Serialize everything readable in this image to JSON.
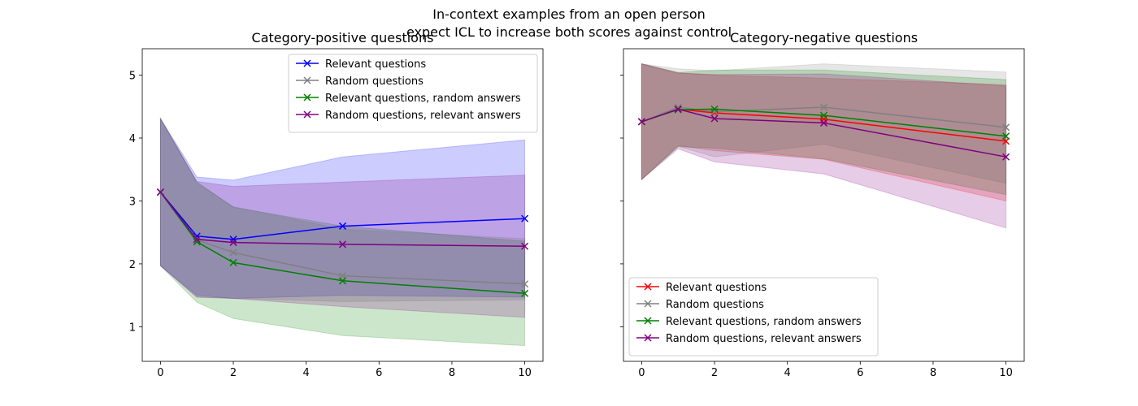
{
  "figure": {
    "suptitle_line1": "In-context examples from an open person",
    "suptitle_line2": "expect ICL to increase both scores against control"
  },
  "chart_data": [
    {
      "type": "line",
      "title": "Category-positive questions",
      "xlabel": "",
      "ylabel": "",
      "xlim": [
        -0.5,
        10.5
      ],
      "ylim": [
        0.45,
        5.42
      ],
      "xticks": [
        0,
        2,
        4,
        6,
        8,
        10
      ],
      "yticks": [
        1,
        2,
        3,
        4,
        5
      ],
      "grid": false,
      "legend_position": "upper-right",
      "x": [
        0,
        1,
        2,
        5,
        10
      ],
      "series": [
        {
          "name": "Relevant questions",
          "color": "#0000ff",
          "band_color": "#0000ff",
          "values": [
            3.14,
            2.44,
            2.39,
            2.6,
            2.72
          ],
          "lower": [
            1.97,
            1.5,
            1.45,
            1.5,
            1.47
          ],
          "upper": [
            4.31,
            3.38,
            3.33,
            3.7,
            3.97
          ]
        },
        {
          "name": "Random questions",
          "color": "#808080",
          "band_color": "#808080",
          "values": [
            3.14,
            2.38,
            2.18,
            1.81,
            1.68
          ],
          "lower": [
            1.97,
            1.47,
            1.45,
            1.4,
            1.43
          ],
          "upper": [
            4.31,
            3.29,
            2.91,
            2.55,
            2.4
          ]
        },
        {
          "name": "Relevant questions, random answers",
          "color": "#008000",
          "band_color": "#008000",
          "values": [
            3.14,
            2.35,
            2.02,
            1.73,
            1.53
          ],
          "lower": [
            1.97,
            1.39,
            1.13,
            0.86,
            0.7
          ],
          "upper": [
            4.31,
            3.3,
            2.9,
            2.6,
            2.36
          ]
        },
        {
          "name": "Random questions, relevant answers",
          "color": "#800080",
          "band_color": "#800080",
          "values": [
            3.14,
            2.39,
            2.34,
            2.31,
            2.28
          ],
          "lower": [
            1.97,
            1.47,
            1.45,
            1.32,
            1.15
          ],
          "upper": [
            4.31,
            3.31,
            3.23,
            3.3,
            3.41
          ]
        }
      ]
    },
    {
      "type": "line",
      "title": "Category-negative questions",
      "xlabel": "",
      "ylabel": "",
      "xlim": [
        -0.5,
        10.5
      ],
      "ylim": [
        0.45,
        5.42
      ],
      "xticks": [
        0,
        2,
        4,
        6,
        8,
        10
      ],
      "yticks": [
        1,
        2,
        3,
        4,
        5
      ],
      "grid": false,
      "legend_position": "lower-left",
      "x": [
        0,
        1,
        2,
        5,
        10
      ],
      "series": [
        {
          "name": "Relevant questions",
          "color": "#ff0000",
          "band_color": "#ff0000",
          "values": [
            4.26,
            4.46,
            4.4,
            4.3,
            3.95
          ],
          "lower": [
            3.34,
            3.88,
            3.8,
            3.66,
            3.0
          ],
          "upper": [
            5.18,
            5.04,
            5.0,
            4.95,
            4.85
          ]
        },
        {
          "name": "Random questions",
          "color": "#808080",
          "band_color": "#808080",
          "values": [
            4.26,
            4.49,
            4.42,
            4.49,
            4.17
          ],
          "lower": [
            3.34,
            3.87,
            3.7,
            3.9,
            3.28
          ],
          "upper": [
            5.18,
            5.1,
            5.07,
            5.18,
            5.05
          ]
        },
        {
          "name": "Relevant questions, random answers",
          "color": "#008000",
          "band_color": "#008000",
          "values": [
            4.26,
            4.45,
            4.46,
            4.36,
            4.03
          ],
          "lower": [
            3.34,
            3.86,
            3.84,
            3.67,
            3.1
          ],
          "upper": [
            5.18,
            5.04,
            5.08,
            5.08,
            4.93
          ]
        },
        {
          "name": "Random questions, relevant answers",
          "color": "#800080",
          "band_color": "#800080",
          "values": [
            4.26,
            4.46,
            4.31,
            4.24,
            3.7
          ],
          "lower": [
            3.34,
            3.83,
            3.62,
            3.43,
            2.57
          ],
          "upper": [
            5.18,
            5.03,
            5.01,
            5.02,
            4.83
          ]
        }
      ]
    }
  ]
}
